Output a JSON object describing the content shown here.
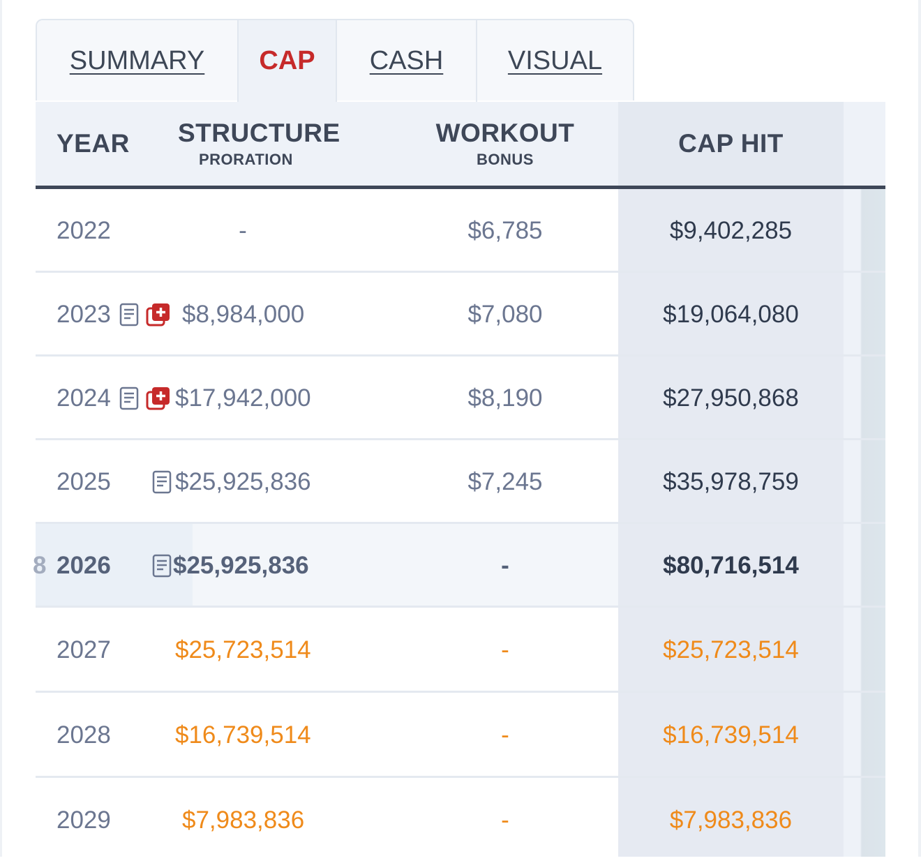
{
  "tabs": [
    {
      "label": "SUMMARY",
      "active": false
    },
    {
      "label": "CAP",
      "active": true
    },
    {
      "label": "CASH",
      "active": false
    },
    {
      "label": "VISUAL",
      "active": false
    }
  ],
  "columns": {
    "year": "YEAR",
    "structure": "STRUCTURE",
    "structure_sub": "PRORATION",
    "workout": "WORKOUT",
    "workout_sub": "BONUS",
    "cap_hit": "CAP HIT"
  },
  "rows": [
    {
      "year": "2022",
      "structure": "-",
      "workout": "$6,785",
      "cap_hit": "$9,402,285"
    },
    {
      "year": "2023",
      "structure": "$8,984,000",
      "workout": "$7,080",
      "cap_hit": "$19,064,080"
    },
    {
      "year": "2024",
      "structure": "$17,942,000",
      "workout": "$8,190",
      "cap_hit": "$27,950,868"
    },
    {
      "year": "2025",
      "structure": "$25,925,836",
      "workout": "$7,245",
      "cap_hit": "$35,978,759"
    },
    {
      "year": "2026",
      "structure": "$25,925,836",
      "workout": "-",
      "cap_hit": "$80,716,514",
      "prefix": "8"
    },
    {
      "year": "2027",
      "structure": "$25,723,514",
      "workout": "-",
      "cap_hit": "$25,723,514"
    },
    {
      "year": "2028",
      "structure": "$16,739,514",
      "workout": "-",
      "cap_hit": "$16,739,514"
    },
    {
      "year": "2029",
      "structure": "$7,983,836",
      "workout": "-",
      "cap_hit": "$7,983,836"
    }
  ],
  "colors": {
    "accent_red": "#c62a2a",
    "future_orange": "#ef8a1a",
    "header_text": "#3e4758"
  },
  "icons": [
    "document-icon",
    "medical-add-icon"
  ]
}
